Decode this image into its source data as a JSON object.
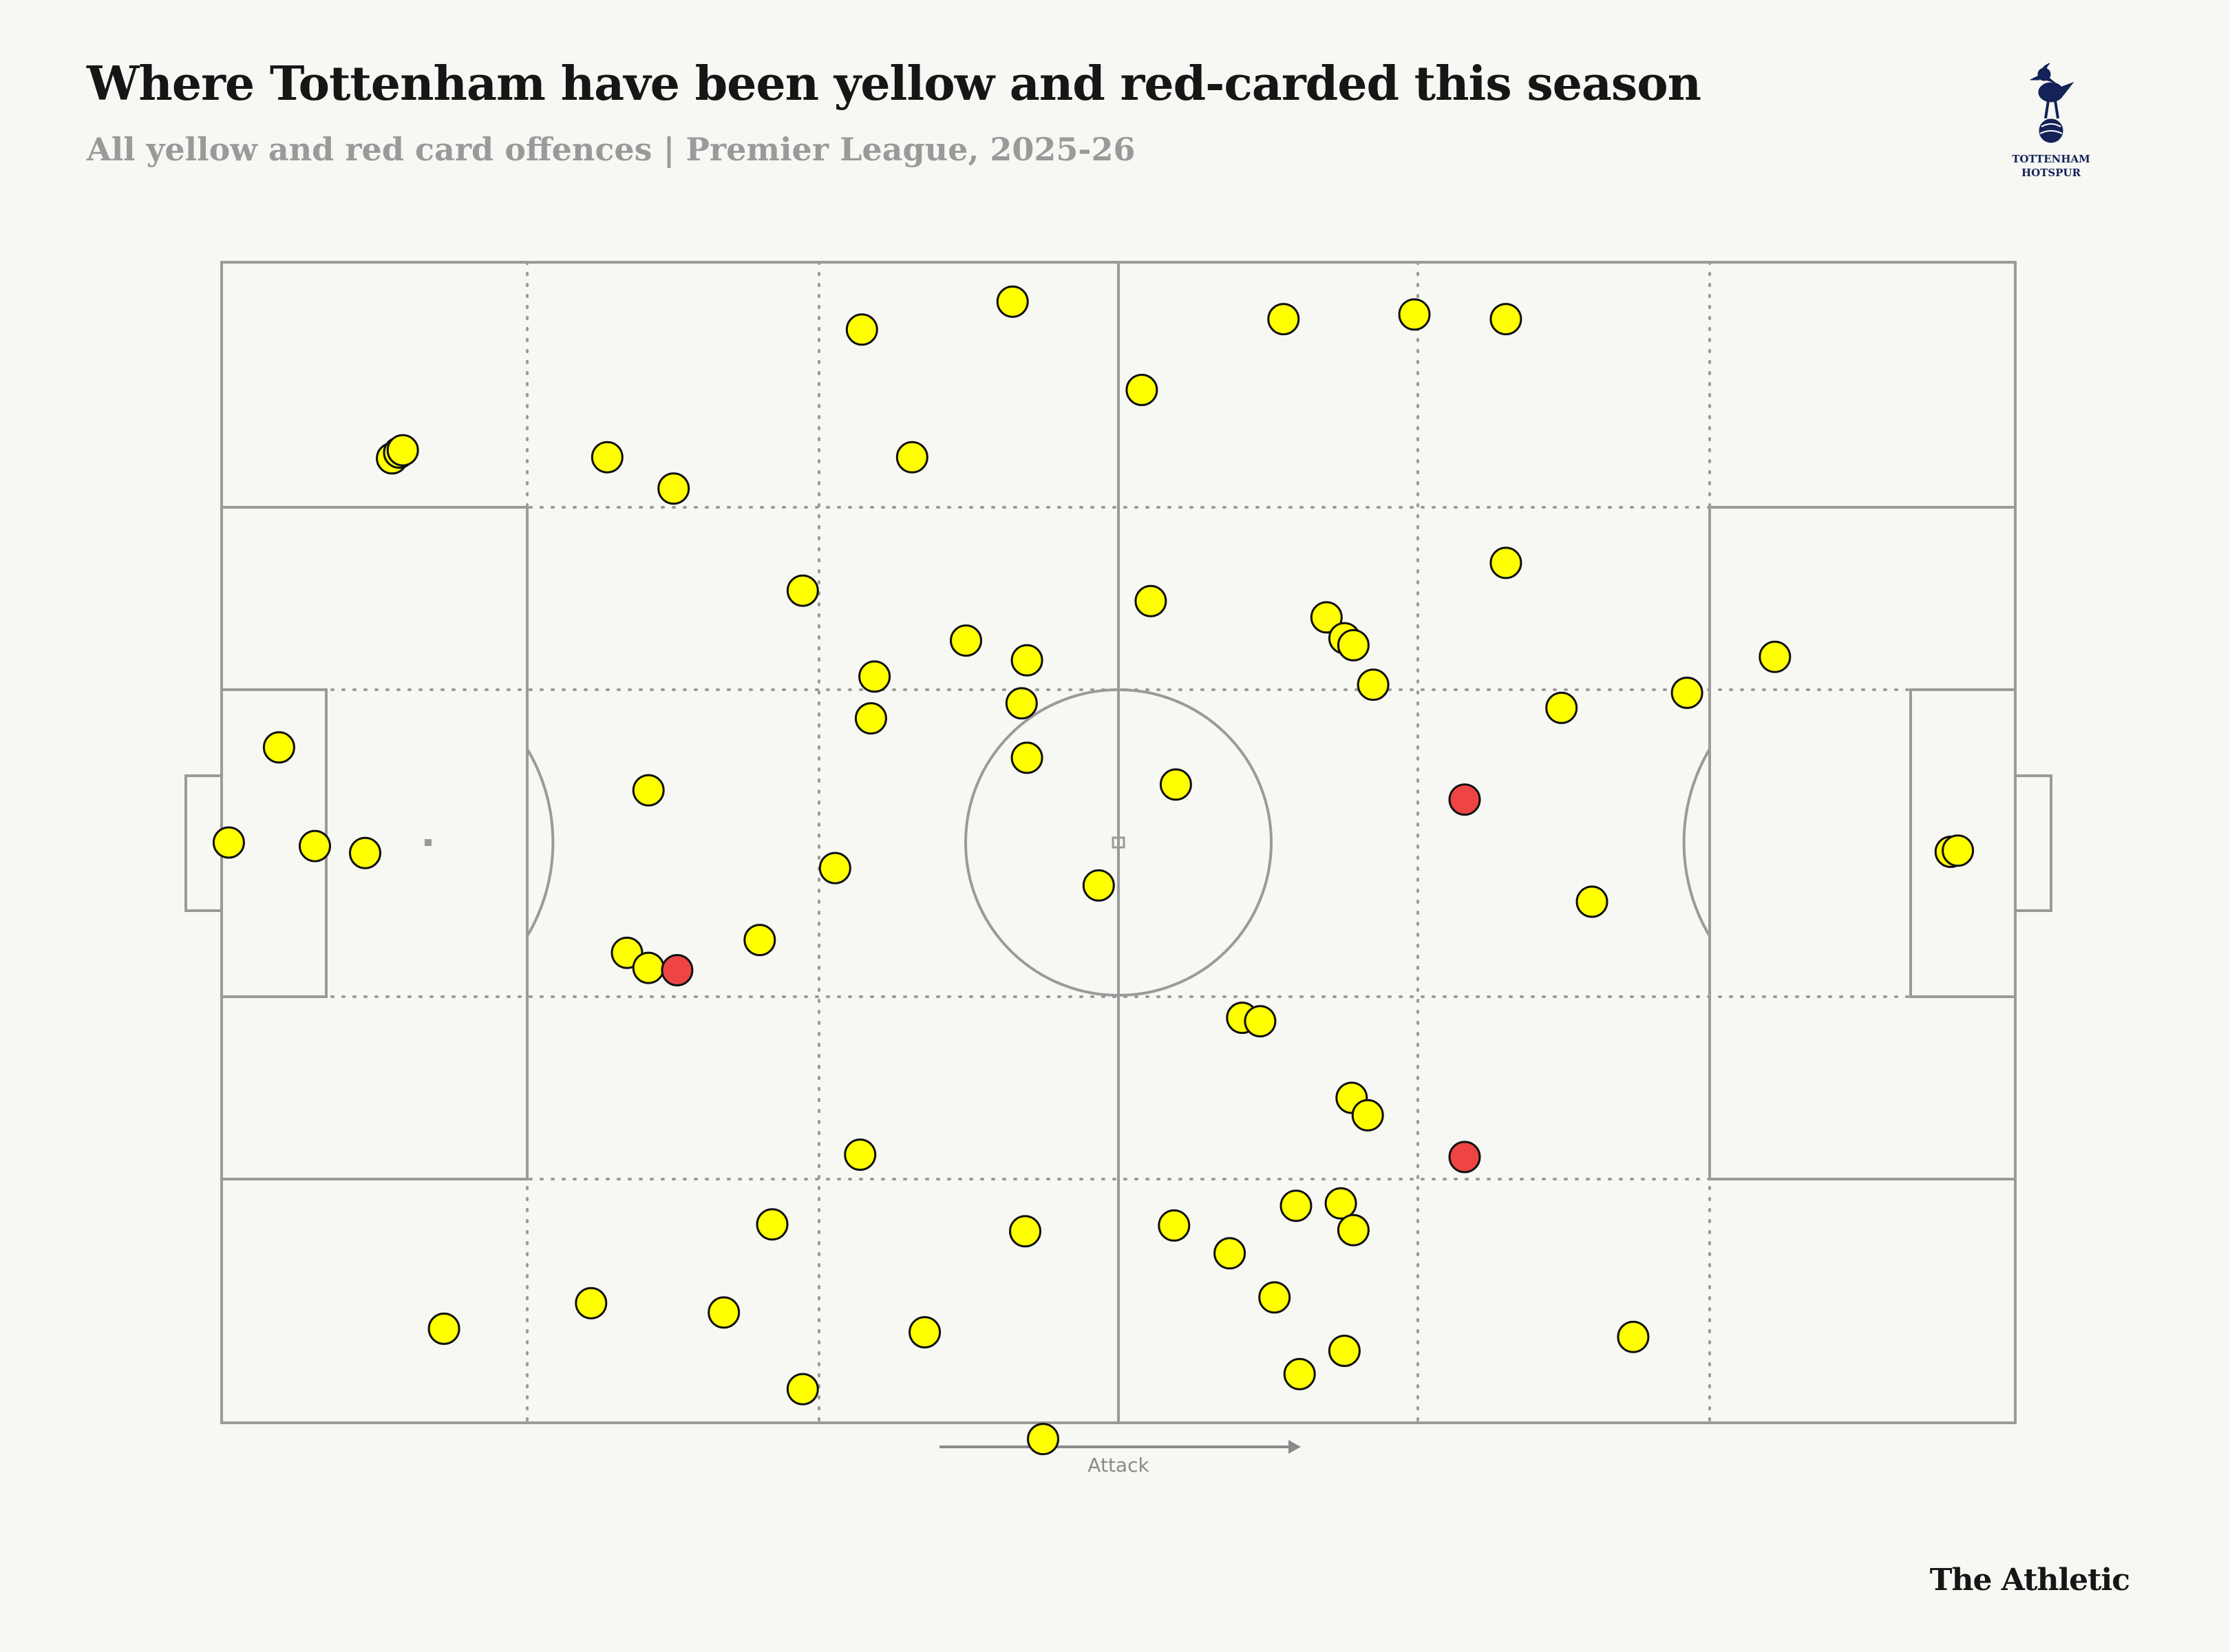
{
  "header": {
    "title": "Where Tottenham have been yellow and red-carded this season",
    "subtitle": "All yellow and red card offences | Premier League, 2025-26"
  },
  "crest": {
    "name": "tottenham-hotspur-crest",
    "text_line1": "TOTTENHAM",
    "text_line2": "HOTSPUR"
  },
  "brand": {
    "label": "The Athletic"
  },
  "legend_note": {
    "attack_label": "Attack"
  },
  "colors": {
    "yellow": "#ffff00",
    "red": "#ef4444",
    "pitch_line": "#9a9a9a",
    "background": "#f7f7f3"
  },
  "chart_data": {
    "type": "scatter",
    "title": "Where Tottenham have been yellow and red-carded this season",
    "subtitle": "All yellow and red card offences | Premier League, 2025-26",
    "xlim": [
      0,
      100
    ],
    "ylim": [
      0,
      100
    ],
    "attack_direction": "left-to-right",
    "series": [
      {
        "color": "#ffff00",
        "points": [
          [
            9.5,
            16.9
          ],
          [
            9.9,
            16.4
          ],
          [
            10.1,
            16.2
          ],
          [
            21.5,
            16.8
          ],
          [
            25.2,
            19.5
          ],
          [
            35.7,
            5.8
          ],
          [
            44.1,
            3.4
          ],
          [
            38.5,
            16.8
          ],
          [
            51.3,
            11.0
          ],
          [
            59.2,
            4.9
          ],
          [
            66.5,
            4.5
          ],
          [
            71.6,
            4.9
          ],
          [
            71.6,
            25.9
          ],
          [
            44.9,
            34.3
          ],
          [
            32.4,
            28.3
          ],
          [
            36.4,
            35.7
          ],
          [
            44.6,
            38.0
          ],
          [
            36.2,
            39.3
          ],
          [
            41.5,
            32.6
          ],
          [
            51.8,
            29.2
          ],
          [
            61.6,
            30.6
          ],
          [
            62.6,
            32.4
          ],
          [
            63.1,
            33.0
          ],
          [
            64.2,
            36.4
          ],
          [
            74.7,
            38.4
          ],
          [
            81.7,
            37.1
          ],
          [
            86.6,
            34.0
          ],
          [
            3.2,
            41.8
          ],
          [
            0.4,
            50.0
          ],
          [
            5.2,
            50.3
          ],
          [
            8.0,
            50.9
          ],
          [
            23.8,
            45.5
          ],
          [
            44.9,
            42.7
          ],
          [
            48.9,
            53.7
          ],
          [
            53.2,
            45.0
          ],
          [
            30.0,
            58.4
          ],
          [
            34.2,
            52.2
          ],
          [
            22.6,
            59.5
          ],
          [
            23.8,
            60.8
          ],
          [
            76.4,
            55.1
          ],
          [
            96.4,
            50.8
          ],
          [
            96.8,
            50.7
          ],
          [
            56.9,
            65.1
          ],
          [
            57.9,
            65.4
          ],
          [
            63.0,
            72.0
          ],
          [
            63.9,
            73.5
          ],
          [
            35.6,
            76.9
          ],
          [
            30.7,
            82.9
          ],
          [
            44.8,
            83.5
          ],
          [
            53.1,
            83.0
          ],
          [
            56.2,
            85.4
          ],
          [
            59.9,
            81.3
          ],
          [
            62.4,
            81.1
          ],
          [
            63.1,
            83.4
          ],
          [
            12.4,
            91.9
          ],
          [
            20.6,
            89.7
          ],
          [
            28.0,
            90.5
          ],
          [
            39.2,
            92.2
          ],
          [
            32.4,
            97.1
          ],
          [
            58.7,
            89.2
          ],
          [
            62.6,
            93.8
          ],
          [
            60.1,
            95.8
          ],
          [
            78.7,
            92.6
          ],
          [
            45.8,
            101.4
          ]
        ]
      },
      {
        "color": "#ef4444",
        "points": [
          [
            25.4,
            61.0
          ],
          [
            69.3,
            77.1
          ],
          [
            69.3,
            46.3
          ]
        ]
      }
    ]
  }
}
